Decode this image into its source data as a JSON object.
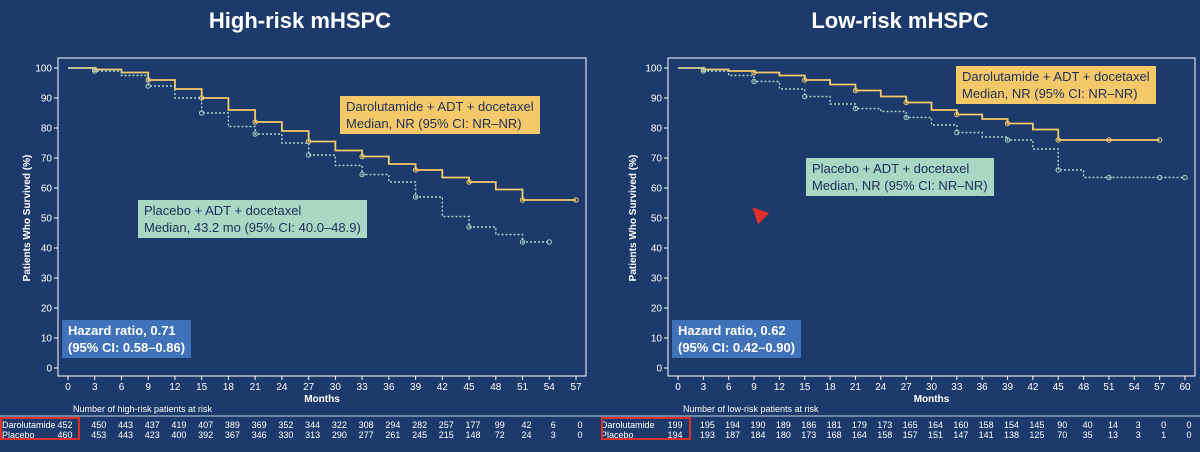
{
  "chart_data": [
    {
      "type": "line",
      "title": "High-risk mHSPC",
      "xlabel": "Months",
      "ylabel": "Patients Who Survived (%)",
      "xlim": [
        0,
        57
      ],
      "ylim": [
        0,
        100
      ],
      "x_ticks": [
        0,
        3,
        6,
        9,
        12,
        15,
        18,
        21,
        24,
        27,
        30,
        33,
        36,
        39,
        42,
        45,
        48,
        51,
        54,
        57
      ],
      "y_ticks": [
        0,
        10,
        20,
        30,
        40,
        50,
        60,
        70,
        80,
        90,
        100
      ],
      "series": [
        {
          "name": "Darolutamide + ADT + docetaxel",
          "x": [
            0,
            3,
            6,
            9,
            12,
            15,
            18,
            21,
            24,
            27,
            30,
            33,
            36,
            39,
            42,
            45,
            48,
            51,
            54,
            57
          ],
          "y": [
            100,
            99.5,
            98.5,
            96,
            93,
            90,
            86,
            82,
            79,
            75.5,
            72.5,
            70.5,
            68,
            66,
            63.5,
            62,
            59.5,
            56,
            56,
            56
          ]
        },
        {
          "name": "Placebo + ADT + docetaxel",
          "x": [
            0,
            3,
            6,
            9,
            12,
            15,
            18,
            21,
            24,
            27,
            30,
            33,
            36,
            39,
            42,
            45,
            48,
            51,
            54
          ],
          "y": [
            100,
            99,
            97.5,
            94,
            90,
            85,
            80.5,
            78,
            75,
            71,
            67.5,
            64.5,
            62,
            57,
            50.5,
            47,
            44.5,
            42,
            42
          ]
        }
      ],
      "annotations": {
        "darolutamide": [
          "Darolutamide + ADT + docetaxel",
          "Median, NR (95% CI: NR–NR)"
        ],
        "placebo": [
          "Placebo + ADT + docetaxel",
          "Median, 43.2 mo (95% CI: 40.0–48.9)"
        ],
        "hazard": [
          "Hazard ratio, 0.71",
          "(95% CI: 0.58–0.86)"
        ]
      },
      "risk_table": {
        "caption": "Number of high-risk patients at risk",
        "rows": [
          {
            "label": "Darolutamide",
            "values": [
              "452",
              "450",
              "443",
              "437",
              "419",
              "407",
              "389",
              "369",
              "352",
              "344",
              "322",
              "308",
              "294",
              "282",
              "257",
              "177",
              "99",
              "42",
              "6",
              "0"
            ]
          },
          {
            "label": "Placebo",
            "values": [
              "460",
              "453",
              "443",
              "423",
              "400",
              "392",
              "367",
              "346",
              "330",
              "313",
              "290",
              "277",
              "261",
              "245",
              "215",
              "148",
              "72",
              "24",
              "3",
              "0"
            ]
          }
        ]
      }
    },
    {
      "type": "line",
      "title": "Low-risk mHSPC",
      "xlabel": "Months",
      "ylabel": "Patients Who Survived (%)",
      "xlim": [
        0,
        60
      ],
      "ylim": [
        0,
        100
      ],
      "x_ticks": [
        0,
        3,
        6,
        9,
        12,
        15,
        18,
        21,
        24,
        27,
        30,
        33,
        36,
        39,
        42,
        45,
        48,
        51,
        54,
        57,
        60
      ],
      "y_ticks": [
        0,
        10,
        20,
        30,
        40,
        50,
        60,
        70,
        80,
        90,
        100
      ],
      "series": [
        {
          "name": "Darolutamide + ADT + docetaxel",
          "x": [
            0,
            3,
            6,
            9,
            12,
            15,
            18,
            21,
            24,
            27,
            30,
            33,
            36,
            39,
            42,
            45,
            48,
            51,
            54,
            57
          ],
          "y": [
            100,
            99.5,
            99,
            98.5,
            97.5,
            96,
            94.5,
            92.5,
            90.5,
            88.5,
            86,
            84.5,
            83,
            81.5,
            79.5,
            76,
            76,
            76,
            76,
            76
          ]
        },
        {
          "name": "Placebo + ADT + docetaxel",
          "x": [
            0,
            3,
            6,
            9,
            12,
            15,
            18,
            21,
            24,
            27,
            30,
            33,
            36,
            39,
            42,
            45,
            48,
            51,
            54,
            57,
            60
          ],
          "y": [
            100,
            99,
            97.5,
            95.5,
            93,
            90.5,
            88,
            86.5,
            85.5,
            83.5,
            81,
            78.5,
            77,
            76,
            73,
            66,
            63.5,
            63.5,
            63.5,
            63.5,
            63.5
          ]
        }
      ],
      "annotations": {
        "darolutamide": [
          "Darolutamide + ADT + docetaxel",
          "Median, NR (95% CI: NR–NR)"
        ],
        "placebo": [
          "Placebo + ADT + docetaxel",
          "Median, NR (95% CI: NR–NR)"
        ],
        "hazard": [
          "Hazard ratio, 0.62",
          "(95% CI: 0.42–0.90)"
        ]
      },
      "risk_table": {
        "caption": "Number of low-risk patients at risk",
        "rows": [
          {
            "label": "Darolutamide",
            "values": [
              "199",
              "195",
              "194",
              "190",
              "189",
              "186",
              "181",
              "179",
              "173",
              "165",
              "164",
              "160",
              "158",
              "154",
              "145",
              "90",
              "40",
              "14",
              "3",
              "0",
              "0"
            ]
          },
          {
            "label": "Placebo",
            "values": [
              "194",
              "193",
              "187",
              "184",
              "180",
              "173",
              "168",
              "164",
              "158",
              "157",
              "151",
              "147",
              "141",
              "138",
              "125",
              "70",
              "35",
              "13",
              "3",
              "1",
              "0"
            ]
          }
        ]
      }
    }
  ],
  "colors": {
    "background": "#1d3a6c",
    "darolutamide": "#f5c96a",
    "placebo": "#a8d7c4",
    "axis": "#ffffff",
    "hazard_box": "#3f72b8",
    "highlight": "#e0302a"
  }
}
